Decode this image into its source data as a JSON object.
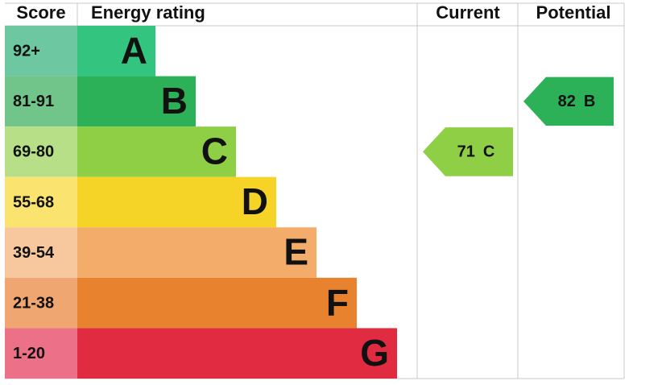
{
  "header": {
    "score": "Score",
    "rating": "Energy rating",
    "current": "Current",
    "potential": "Potential"
  },
  "bands": [
    {
      "score": "92+",
      "letter": "A",
      "color": "#33c580",
      "light": "#6dc7a1"
    },
    {
      "score": "81-91",
      "letter": "B",
      "color": "#2cb158",
      "light": "#72c58a"
    },
    {
      "score": "69-80",
      "letter": "C",
      "color": "#8ecf46",
      "light": "#b6df88"
    },
    {
      "score": "55-68",
      "letter": "D",
      "color": "#f6d327",
      "light": "#fae36e"
    },
    {
      "score": "39-54",
      "letter": "E",
      "color": "#f4ac6a",
      "light": "#f7c89d"
    },
    {
      "score": "21-38",
      "letter": "F",
      "color": "#e8822f",
      "light": "#efa671"
    },
    {
      "score": "1-20",
      "letter": "G",
      "color": "#e02b40",
      "light": "#ec7087"
    }
  ],
  "current": {
    "score": 71,
    "band": "C"
  },
  "potential": {
    "score": 82,
    "band": "B"
  }
}
